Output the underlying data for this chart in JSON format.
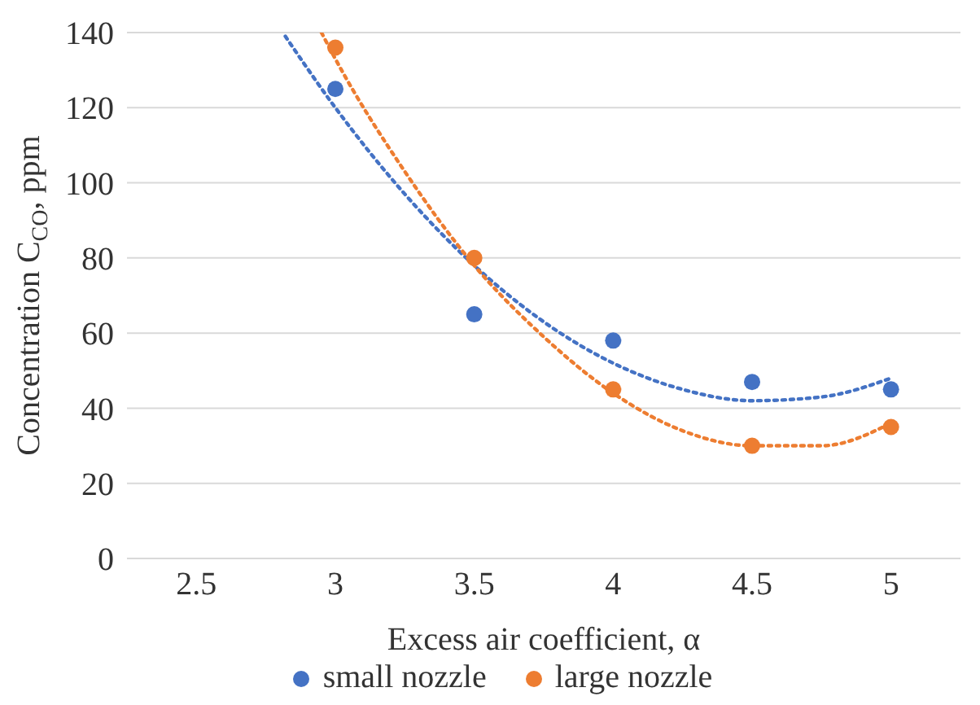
{
  "chart_data": {
    "type": "scatter",
    "xlabel": "Excess air coefficient, α",
    "ylabel": "Concentration C$_{CO}$, ppm",
    "xlim": [
      2.25,
      5.25
    ],
    "xticks": [
      2.5,
      3,
      3.5,
      4,
      4.5,
      5
    ],
    "ylim": [
      0,
      140
    ],
    "yticks": [
      0,
      20,
      40,
      60,
      80,
      100,
      120,
      140
    ],
    "grid": "y",
    "legend": "bottom",
    "marker": "circle",
    "series": [
      {
        "name": "small nozzle",
        "color": "#4472c4",
        "x": [
          3,
          3.5,
          4,
          4.5,
          5
        ],
        "values": [
          125,
          65,
          58,
          47,
          45
        ]
      },
      {
        "name": "large nozzle",
        "color": "#ed7d31",
        "x": [
          3,
          3.5,
          4,
          4.5,
          5
        ],
        "values": [
          136,
          80,
          45,
          30,
          35
        ]
      },
      {
        "type": "line",
        "line_style": "dotted",
        "marker": "none",
        "color": "#4472c4",
        "x": [
          2.82,
          3,
          3.25,
          3.5,
          3.75,
          4,
          4.25,
          4.5,
          4.75,
          5
        ],
        "values": [
          139,
          120,
          97,
          78,
          63,
          52,
          45,
          42,
          43,
          48
        ]
      },
      {
        "type": "line",
        "line_style": "dotted",
        "marker": "none",
        "color": "#ed7d31",
        "x": [
          2.95,
          3,
          3.25,
          3.5,
          3.75,
          4,
          4.25,
          4.5,
          4.75,
          5
        ],
        "values": [
          140,
          133,
          103,
          78,
          59,
          44,
          34,
          30,
          30,
          36
        ]
      }
    ]
  }
}
